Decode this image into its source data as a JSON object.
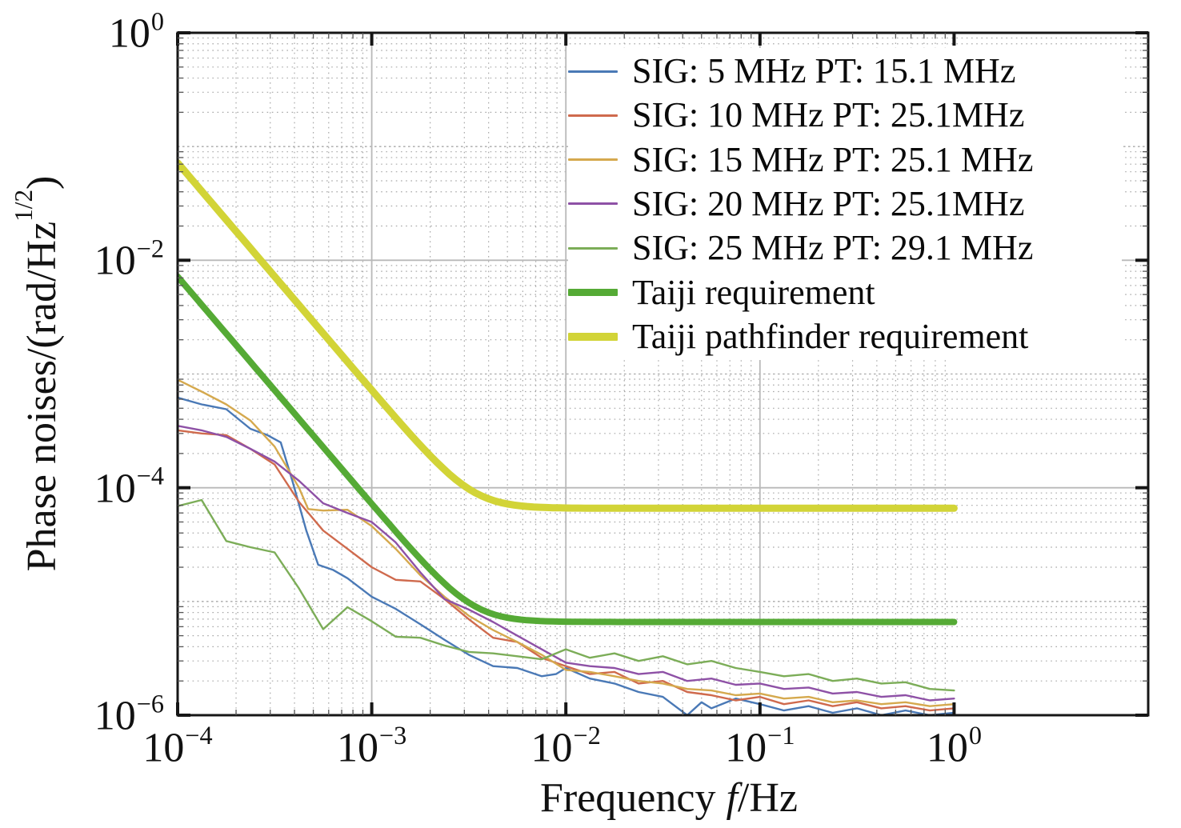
{
  "chart_data": {
    "type": "line",
    "scale": "log-log",
    "xlabel": {
      "prefix": "Frequency ",
      "symbol": "f",
      "suffix": "/Hz"
    },
    "ylabel": {
      "main": "Phase noises/(rad/Hz",
      "sup": "1/2",
      "close": ")"
    },
    "axes": {
      "x": {
        "min": 0.0001,
        "max": 1,
        "tick_exponents": [
          -4,
          -3,
          -2,
          -1,
          0
        ]
      },
      "y": {
        "min": 1e-06,
        "max": 1,
        "tick_exponents": [
          0,
          -2,
          -4,
          -6
        ]
      }
    },
    "grid": {
      "major_color": "#b9b9b9",
      "minor_color": "#a8a8a8",
      "frame_color": "#161616"
    },
    "series": [
      {
        "label": "SIG: 5 MHz PT: 15.1 MHz",
        "color": "#4a79b6",
        "line_width": 2.4,
        "points": [
          [
            0.0001,
            0.00062
          ],
          [
            0.000133,
            0.00054
          ],
          [
            0.000178,
            0.00049
          ],
          [
            0.000237,
            0.00033
          ],
          [
            0.00029,
            0.00029
          ],
          [
            0.00034,
            0.00025
          ],
          [
            0.00039,
            0.000115
          ],
          [
            0.00046,
            4.2e-05
          ],
          [
            0.00053,
            2.1e-05
          ],
          [
            0.00063,
            1.9e-05
          ],
          [
            0.00075,
            1.6e-05
          ],
          [
            0.001,
            1.1e-05
          ],
          [
            0.00133,
            8.6e-06
          ],
          [
            0.00178,
            6.3e-06
          ],
          [
            0.00237,
            4.6e-06
          ],
          [
            0.00316,
            3.4e-06
          ],
          [
            0.00422,
            2.7e-06
          ],
          [
            0.00562,
            2.6e-06
          ],
          [
            0.0075,
            2.2e-06
          ],
          [
            0.0089,
            2.3e-06
          ],
          [
            0.01,
            2.6e-06
          ],
          [
            0.0133,
            2.1e-06
          ],
          [
            0.0178,
            1.9e-06
          ],
          [
            0.0237,
            1.6e-06
          ],
          [
            0.0316,
            1.45e-06
          ],
          [
            0.0422,
            1e-06
          ],
          [
            0.05,
            1.3e-06
          ],
          [
            0.0562,
            1.15e-06
          ],
          [
            0.075,
            1.4e-06
          ],
          [
            0.1,
            1.25e-06
          ],
          [
            0.133,
            1.1e-06
          ],
          [
            0.178,
            1.2e-06
          ],
          [
            0.237,
            1.05e-06
          ],
          [
            0.316,
            1.15e-06
          ],
          [
            0.422,
            1e-06
          ],
          [
            0.562,
            1.1e-06
          ],
          [
            0.75,
            1e-06
          ],
          [
            1,
            1.05e-06
          ]
        ]
      },
      {
        "label": "SIG: 10 MHz PT: 25.1MHz",
        "color": "#cf6a4d",
        "line_width": 2.4,
        "points": [
          [
            0.0001,
            0.00032
          ],
          [
            0.000133,
            0.0003
          ],
          [
            0.000178,
            0.00029
          ],
          [
            0.000237,
            0.00022
          ],
          [
            0.000316,
            0.00016
          ],
          [
            0.000422,
            7.5e-05
          ],
          [
            0.000562,
            4.2e-05
          ],
          [
            0.00075,
            2.9e-05
          ],
          [
            0.001,
            2e-05
          ],
          [
            0.00133,
            1.55e-05
          ],
          [
            0.00178,
            1.5e-05
          ],
          [
            0.00237,
            1.05e-05
          ],
          [
            0.00316,
            7e-06
          ],
          [
            0.00422,
            4.8e-06
          ],
          [
            0.00562,
            4.4e-06
          ],
          [
            0.0075,
            3.2e-06
          ],
          [
            0.01,
            2.7e-06
          ],
          [
            0.0133,
            2.3e-06
          ],
          [
            0.0178,
            2.4e-06
          ],
          [
            0.0237,
            1.9e-06
          ],
          [
            0.0316,
            2e-06
          ],
          [
            0.0422,
            1.6e-06
          ],
          [
            0.0562,
            1.5e-06
          ],
          [
            0.075,
            1.35e-06
          ],
          [
            0.1,
            1.45e-06
          ],
          [
            0.133,
            1.25e-06
          ],
          [
            0.178,
            1.35e-06
          ],
          [
            0.237,
            1.2e-06
          ],
          [
            0.316,
            1.3e-06
          ],
          [
            0.422,
            1.15e-06
          ],
          [
            0.562,
            1.2e-06
          ],
          [
            0.75,
            1.1e-06
          ],
          [
            1,
            1.15e-06
          ]
        ]
      },
      {
        "label": "SIG: 15 MHz PT: 25.1 MHz",
        "color": "#d5a94e",
        "line_width": 2.4,
        "points": [
          [
            0.0001,
            0.00089
          ],
          [
            0.000133,
            0.0007
          ],
          [
            0.000178,
            0.00054
          ],
          [
            0.000237,
            0.00039
          ],
          [
            0.000316,
            0.00023
          ],
          [
            0.000422,
            0.0001
          ],
          [
            0.00047,
            6.5e-05
          ],
          [
            0.000562,
            6.3e-05
          ],
          [
            0.00075,
            6.4e-05
          ],
          [
            0.001,
            4.6e-05
          ],
          [
            0.00133,
            2.9e-05
          ],
          [
            0.00178,
            1.7e-05
          ],
          [
            0.00237,
            1.1e-05
          ],
          [
            0.00316,
            7.5e-06
          ],
          [
            0.00422,
            5.6e-06
          ],
          [
            0.00562,
            4.4e-06
          ],
          [
            0.0075,
            3.4e-06
          ],
          [
            0.01,
            2.5e-06
          ],
          [
            0.0133,
            2.4e-06
          ],
          [
            0.0178,
            2.2e-06
          ],
          [
            0.0237,
            2e-06
          ],
          [
            0.0316,
            1.9e-06
          ],
          [
            0.0422,
            1.7e-06
          ],
          [
            0.0562,
            1.65e-06
          ],
          [
            0.075,
            1.5e-06
          ],
          [
            0.1,
            1.55e-06
          ],
          [
            0.133,
            1.4e-06
          ],
          [
            0.178,
            1.45e-06
          ],
          [
            0.237,
            1.3e-06
          ],
          [
            0.316,
            1.35e-06
          ],
          [
            0.422,
            1.25e-06
          ],
          [
            0.562,
            1.3e-06
          ],
          [
            0.75,
            1.2e-06
          ],
          [
            1,
            1.25e-06
          ]
        ]
      },
      {
        "label": "SIG: 20 MHz PT: 25.1MHz",
        "color": "#8e51a6",
        "line_width": 2.4,
        "points": [
          [
            0.0001,
            0.00035
          ],
          [
            0.000133,
            0.00032
          ],
          [
            0.000178,
            0.00028
          ],
          [
            0.000237,
            0.00022
          ],
          [
            0.000316,
            0.00017
          ],
          [
            0.000422,
            0.000115
          ],
          [
            0.000562,
            7.3e-05
          ],
          [
            0.00075,
            6e-05
          ],
          [
            0.001,
            5e-05
          ],
          [
            0.00133,
            3.3e-05
          ],
          [
            0.00178,
            1.8e-05
          ],
          [
            0.00237,
            1.05e-05
          ],
          [
            0.00316,
            8.5e-06
          ],
          [
            0.00422,
            6.6e-06
          ],
          [
            0.00562,
            5e-06
          ],
          [
            0.0075,
            3.8e-06
          ],
          [
            0.01,
            2.9e-06
          ],
          [
            0.0133,
            2.7e-06
          ],
          [
            0.0178,
            2.6e-06
          ],
          [
            0.0237,
            2.3e-06
          ],
          [
            0.0316,
            2.4e-06
          ],
          [
            0.0422,
            2e-06
          ],
          [
            0.0562,
            2.1e-06
          ],
          [
            0.075,
            1.85e-06
          ],
          [
            0.1,
            1.9e-06
          ],
          [
            0.133,
            1.7e-06
          ],
          [
            0.178,
            1.75e-06
          ],
          [
            0.237,
            1.55e-06
          ],
          [
            0.316,
            1.6e-06
          ],
          [
            0.422,
            1.45e-06
          ],
          [
            0.562,
            1.5e-06
          ],
          [
            0.75,
            1.35e-06
          ],
          [
            1,
            1.4e-06
          ]
        ]
      },
      {
        "label": "SIG: 25 MHz PT: 29.1 MHz",
        "color": "#7cad58",
        "line_width": 2.4,
        "points": [
          [
            0.0001,
            6.9e-05
          ],
          [
            0.000133,
            7.8e-05
          ],
          [
            0.000178,
            3.4e-05
          ],
          [
            0.000237,
            3e-05
          ],
          [
            0.000316,
            2.7e-05
          ],
          [
            0.000422,
            1.3e-05
          ],
          [
            0.000562,
            5.7e-06
          ],
          [
            0.00075,
            8.9e-06
          ],
          [
            0.001,
            6.7e-06
          ],
          [
            0.00133,
            4.9e-06
          ],
          [
            0.00178,
            4.8e-06
          ],
          [
            0.00237,
            4.1e-06
          ],
          [
            0.00316,
            3.6e-06
          ],
          [
            0.00422,
            3.5e-06
          ],
          [
            0.00562,
            3.3e-06
          ],
          [
            0.0075,
            3.1e-06
          ],
          [
            0.01,
            3.8e-06
          ],
          [
            0.0133,
            3.2e-06
          ],
          [
            0.0178,
            3.5e-06
          ],
          [
            0.0237,
            3e-06
          ],
          [
            0.0316,
            3.3e-06
          ],
          [
            0.0422,
            2.8e-06
          ],
          [
            0.0562,
            3e-06
          ],
          [
            0.075,
            2.6e-06
          ],
          [
            0.1,
            2.4e-06
          ],
          [
            0.133,
            2.2e-06
          ],
          [
            0.178,
            2.3e-06
          ],
          [
            0.237,
            2e-06
          ],
          [
            0.316,
            2.1e-06
          ],
          [
            0.422,
            1.9e-06
          ],
          [
            0.562,
            1.95e-06
          ],
          [
            0.75,
            1.7e-06
          ],
          [
            1,
            1.65e-06
          ]
        ]
      },
      {
        "label": "Taiji requirement",
        "color": "#55aa35",
        "line_width": 8,
        "requirement": {
          "flat_level": 6.6e-06,
          "corner_hz": 0.0033
        }
      },
      {
        "label": "Taiji pathfinder requirement",
        "color": "#d2d437",
        "line_width": 9,
        "requirement": {
          "flat_level": 6.6e-05,
          "corner_hz": 0.0033
        }
      }
    ]
  }
}
